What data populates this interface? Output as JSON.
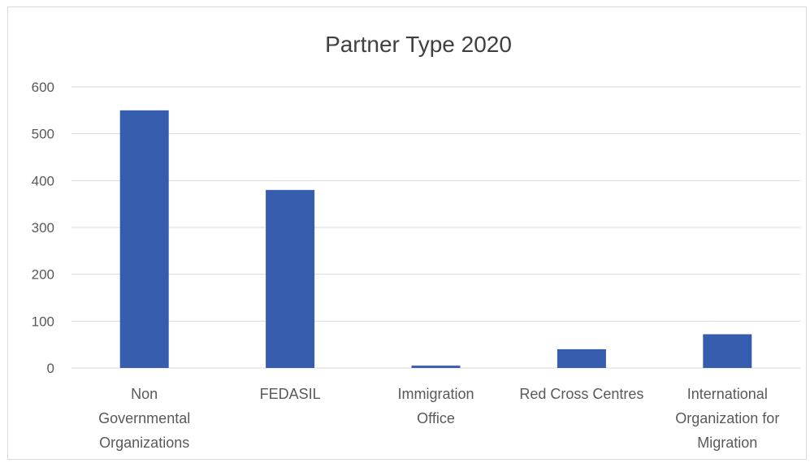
{
  "chart_data": {
    "type": "bar",
    "title": "Partner Type 2020",
    "categories": [
      "Non Governmental Organizations",
      "FEDASIL",
      "Immigration Office",
      "Red Cross Centres",
      "International Organization for Migration"
    ],
    "category_label_lines": [
      [
        "Non",
        "Governmental",
        "Organizations"
      ],
      [
        "FEDASIL"
      ],
      [
        "Immigration",
        "Office"
      ],
      [
        "Red Cross Centres"
      ],
      [
        "International",
        "Organization for",
        "Migration"
      ]
    ],
    "values": [
      550,
      380,
      5,
      40,
      72
    ],
    "ylim": [
      0,
      600
    ],
    "yticks": [
      0,
      100,
      200,
      300,
      400,
      500,
      600
    ],
    "grid": true,
    "legend": "none",
    "bar_color": "#365DAD"
  }
}
